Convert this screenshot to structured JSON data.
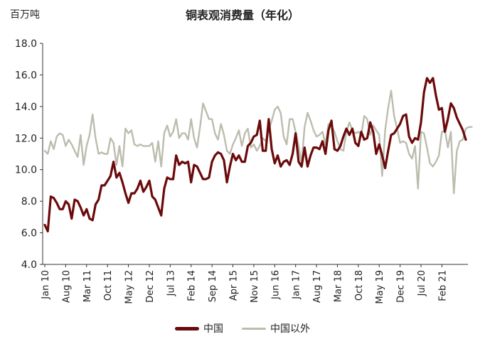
{
  "chart_data": {
    "type": "line",
    "title": "铜表观消费量（年化）",
    "unit_label": "百万吨",
    "ylim": [
      4.0,
      18.0
    ],
    "yticks": [
      "4.0",
      "6.0",
      "8.0",
      "10.0",
      "12.0",
      "14.0",
      "16.0",
      "18.0"
    ],
    "x_start": "2010-01",
    "xticks": [
      "Jan 10",
      "Aug 10",
      "Mar 11",
      "Oct 11",
      "May 12",
      "Dec 12",
      "Jul 13",
      "Feb 14",
      "Sep 14",
      "Apr 15",
      "Nov 15",
      "Jun 16",
      "Jan 17",
      "Aug 17",
      "Mar 18",
      "Oct 18",
      "May 19",
      "Dec 19",
      "Jul 20",
      "Feb 21"
    ],
    "grid": false,
    "legend_position": "bottom",
    "series": [
      {
        "name": "中国",
        "color": "#6b0a0a",
        "values": [
          6.5,
          6.1,
          8.3,
          8.2,
          7.9,
          7.5,
          7.5,
          8.0,
          7.8,
          6.9,
          8.1,
          8.0,
          7.6,
          7.1,
          7.5,
          6.9,
          6.8,
          7.8,
          8.1,
          9.0,
          9.0,
          9.3,
          9.6,
          10.5,
          9.5,
          9.8,
          9.2,
          8.5,
          7.9,
          8.5,
          8.5,
          8.8,
          9.3,
          8.6,
          8.9,
          9.3,
          8.3,
          8.1,
          7.6,
          7.1,
          8.8,
          9.5,
          9.4,
          9.4,
          10.9,
          10.3,
          10.5,
          10.4,
          10.5,
          9.2,
          10.3,
          10.2,
          9.8,
          9.4,
          9.4,
          9.5,
          10.5,
          10.9,
          11.1,
          11.0,
          10.6,
          9.2,
          10.2,
          11.0,
          10.6,
          10.9,
          10.5,
          10.5,
          11.5,
          11.7,
          12.1,
          12.2,
          13.1,
          11.2,
          11.2,
          13.2,
          11.3,
          10.4,
          10.9,
          10.2,
          10.5,
          10.6,
          10.3,
          11.0,
          12.3,
          10.5,
          10.2,
          11.4,
          10.2,
          10.9,
          11.4,
          11.4,
          11.3,
          11.8,
          11.0,
          12.5,
          13.1,
          11.3,
          11.2,
          11.5,
          12.1,
          12.6,
          12.2,
          12.6,
          11.7,
          11.5,
          12.4,
          11.9,
          12.0,
          13.0,
          12.4,
          11.0,
          11.6,
          10.9,
          10.1,
          11.2,
          12.2,
          12.3,
          12.6,
          12.9,
          13.4,
          13.5,
          12.1,
          11.7,
          12.0,
          11.9,
          13.0,
          14.9,
          15.8,
          15.5,
          15.8,
          14.7,
          13.8,
          13.9,
          12.4,
          13.2,
          14.2,
          13.9,
          13.3,
          12.9,
          12.5,
          11.9
        ]
      },
      {
        "name": "中国以外",
        "color": "#bcbcae",
        "values": [
          11.2,
          11.0,
          11.8,
          11.3,
          12.1,
          12.3,
          12.2,
          11.5,
          11.9,
          11.6,
          11.2,
          10.8,
          12.2,
          10.3,
          11.5,
          12.2,
          13.5,
          12.0,
          11.0,
          11.1,
          11.0,
          11.0,
          12.0,
          11.7,
          10.3,
          11.5,
          10.2,
          12.6,
          12.3,
          12.5,
          11.6,
          11.5,
          11.6,
          11.5,
          11.5,
          11.5,
          11.7,
          10.5,
          11.8,
          10.2,
          12.3,
          12.8,
          12.1,
          12.4,
          13.2,
          12.0,
          12.3,
          12.3,
          11.9,
          13.2,
          12.0,
          11.4,
          12.7,
          14.2,
          13.7,
          13.2,
          13.2,
          12.3,
          11.9,
          12.9,
          12.2,
          11.2,
          11.0,
          11.6,
          12.0,
          12.5,
          11.5,
          12.3,
          12.6,
          11.4,
          11.6,
          11.2,
          11.5,
          12.0,
          11.8,
          12.5,
          13.1,
          13.8,
          14.0,
          13.6,
          12.1,
          11.6,
          13.2,
          13.2,
          12.4,
          11.5,
          10.4,
          12.7,
          13.6,
          13.1,
          12.5,
          12.1,
          12.2,
          12.4,
          11.6,
          12.9,
          12.8,
          12.4,
          11.8,
          11.3,
          11.2,
          12.4,
          13.0,
          12.5,
          12.3,
          12.4,
          12.2,
          13.4,
          13.2,
          12.2,
          12.8,
          12.5,
          12.2,
          9.6,
          12.5,
          13.9,
          15.0,
          13.4,
          12.6,
          11.7,
          11.8,
          11.7,
          11.0,
          10.7,
          11.5,
          8.8,
          12.4,
          12.3,
          11.4,
          10.4,
          10.2,
          10.5,
          10.9,
          12.4,
          12.5,
          11.4,
          12.4,
          8.5,
          11.2,
          11.8,
          11.9,
          12.6,
          12.7,
          12.7
        ]
      }
    ]
  }
}
